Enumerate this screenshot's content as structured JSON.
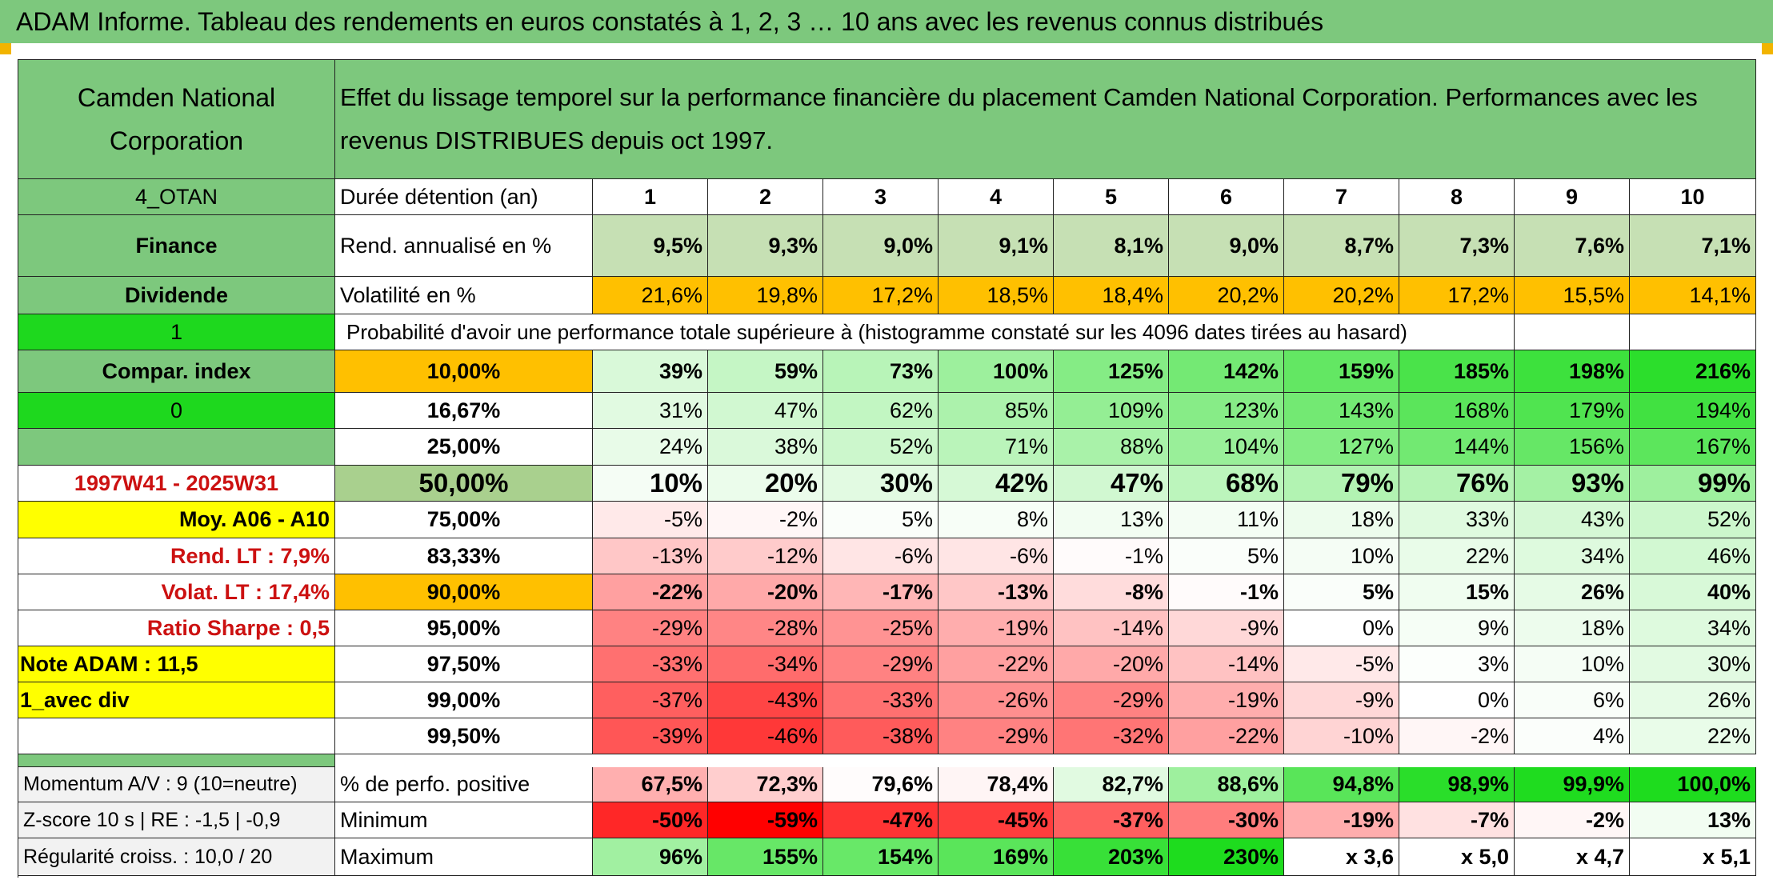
{
  "title": "ADAM Informe. Tableau des rendements en euros constatés à 1, 2, 3 … 10 ans avec les revenus connus distribués",
  "header": {
    "company": "Camden National Corporation",
    "description": "Effet du lissage temporel sur la performance financière du placement Camden National Corporation. Performances avec les revenus DISTRIBUES depuis oct 1997."
  },
  "sidebar": {
    "code": "4_OTAN",
    "sector": "Finance",
    "type": "Dividende",
    "flag1": "1",
    "compar": "Compar. index",
    "flag0": "0",
    "period": "1997W41 - 2025W31",
    "moy": "Moy. A06 - A10",
    "rend_lt": "Rend. LT :   7,9%",
    "volat_lt": "Volat. LT :   17,4%",
    "sharpe": "Ratio Sharpe :   0,5",
    "note": "Note ADAM : 11,5",
    "avec_div": "1_avec div",
    "momentum": "Momentum A/V : 9 (10=neutre)",
    "zscore": "Z-score 10 s | RE : -1,5 | -0,9",
    "regularite": "Régularité croiss. : 10,0 / 20"
  },
  "labels": {
    "duree": "Durée détention (an)",
    "rend": "Rend. annualisé en %",
    "volat": "Volatilité en %",
    "proba": "Probabilité d'avoir une performance totale supérieure à (histogramme constaté sur les 4096 dates tirées au hasard)",
    "positive": "% de perfo. positive",
    "minimum": "Minimum",
    "maximum": "Maximum"
  },
  "years": [
    "1",
    "2",
    "3",
    "4",
    "5",
    "6",
    "7",
    "8",
    "9",
    "10"
  ],
  "rend": [
    "9,5%",
    "9,3%",
    "9,0%",
    "9,1%",
    "8,1%",
    "9,0%",
    "8,7%",
    "7,3%",
    "7,6%",
    "7,1%"
  ],
  "volat": [
    "21,6%",
    "19,8%",
    "17,2%",
    "18,5%",
    "18,4%",
    "20,2%",
    "20,2%",
    "17,2%",
    "15,5%",
    "14,1%"
  ],
  "prob_rows": [
    {
      "p": "10,00%",
      "v": [
        "39%",
        "59%",
        "73%",
        "100%",
        "125%",
        "142%",
        "159%",
        "185%",
        "198%",
        "216%"
      ]
    },
    {
      "p": "16,67%",
      "v": [
        "31%",
        "47%",
        "62%",
        "85%",
        "109%",
        "123%",
        "143%",
        "168%",
        "179%",
        "194%"
      ]
    },
    {
      "p": "25,00%",
      "v": [
        "24%",
        "38%",
        "52%",
        "71%",
        "88%",
        "104%",
        "127%",
        "144%",
        "156%",
        "167%"
      ]
    },
    {
      "p": "50,00%",
      "v": [
        "10%",
        "20%",
        "30%",
        "42%",
        "47%",
        "68%",
        "79%",
        "76%",
        "93%",
        "99%"
      ]
    },
    {
      "p": "75,00%",
      "v": [
        "-5%",
        "-2%",
        "5%",
        "8%",
        "13%",
        "11%",
        "18%",
        "33%",
        "43%",
        "52%"
      ]
    },
    {
      "p": "83,33%",
      "v": [
        "-13%",
        "-12%",
        "-6%",
        "-6%",
        "-1%",
        "5%",
        "10%",
        "22%",
        "34%",
        "46%"
      ]
    },
    {
      "p": "90,00%",
      "v": [
        "-22%",
        "-20%",
        "-17%",
        "-13%",
        "-8%",
        "-1%",
        "5%",
        "15%",
        "26%",
        "40%"
      ]
    },
    {
      "p": "95,00%",
      "v": [
        "-29%",
        "-28%",
        "-25%",
        "-19%",
        "-14%",
        "-9%",
        "0%",
        "9%",
        "18%",
        "34%"
      ]
    },
    {
      "p": "97,50%",
      "v": [
        "-33%",
        "-34%",
        "-29%",
        "-22%",
        "-20%",
        "-14%",
        "-5%",
        "3%",
        "10%",
        "30%"
      ]
    },
    {
      "p": "99,00%",
      "v": [
        "-37%",
        "-43%",
        "-33%",
        "-26%",
        "-29%",
        "-19%",
        "-9%",
        "0%",
        "6%",
        "26%"
      ]
    },
    {
      "p": "99,50%",
      "v": [
        "-39%",
        "-46%",
        "-38%",
        "-29%",
        "-32%",
        "-22%",
        "-10%",
        "-2%",
        "4%",
        "22%"
      ]
    }
  ],
  "positive": [
    "67,5%",
    "72,3%",
    "79,6%",
    "78,4%",
    "82,7%",
    "88,6%",
    "94,8%",
    "98,9%",
    "99,9%",
    "100,0%"
  ],
  "minimum": [
    "-50%",
    "-59%",
    "-47%",
    "-45%",
    "-37%",
    "-30%",
    "-19%",
    "-7%",
    "-2%",
    "13%"
  ],
  "maximum": [
    "96%",
    "155%",
    "154%",
    "169%",
    "203%",
    "230%",
    "x 3,6",
    "x 5,0",
    "x 4,7",
    "x 5,1"
  ],
  "colors": {
    "header_green": "#7dc87d",
    "bright_green": "#1ed81e",
    "yellow": "#ffff00",
    "orange": "#ffc000",
    "rend_bg": "#c6e0b4",
    "median_bg": "#a9d08e"
  }
}
